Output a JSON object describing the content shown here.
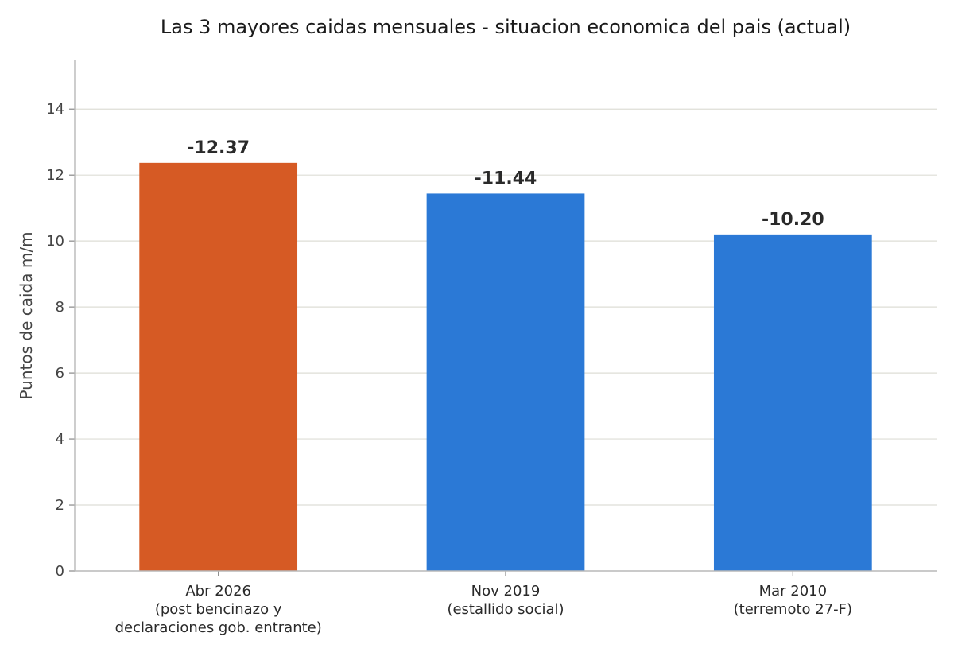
{
  "chart_data": {
    "type": "bar",
    "title": "Las 3 mayores caidas mensuales - situacion economica del pais (actual)",
    "xlabel": "",
    "ylabel": "Puntos de caida m/m",
    "ylim": [
      0,
      15.5
    ],
    "yticks": [
      0,
      2,
      4,
      6,
      8,
      10,
      12,
      14
    ],
    "grid": true,
    "categories": [
      [
        "Abr 2026",
        "(post bencinazo y",
        "declaraciones gob. entrante)"
      ],
      [
        "Nov 2019",
        "(estallido social)"
      ],
      [
        "Mar 2010",
        "(terremoto 27-F)"
      ]
    ],
    "values": [
      12.37,
      11.44,
      10.2
    ],
    "data_labels": [
      "-12.37",
      "-11.44",
      "-10.20"
    ],
    "colors": [
      "#d65a24",
      "#2b79d6",
      "#2b79d6"
    ]
  }
}
